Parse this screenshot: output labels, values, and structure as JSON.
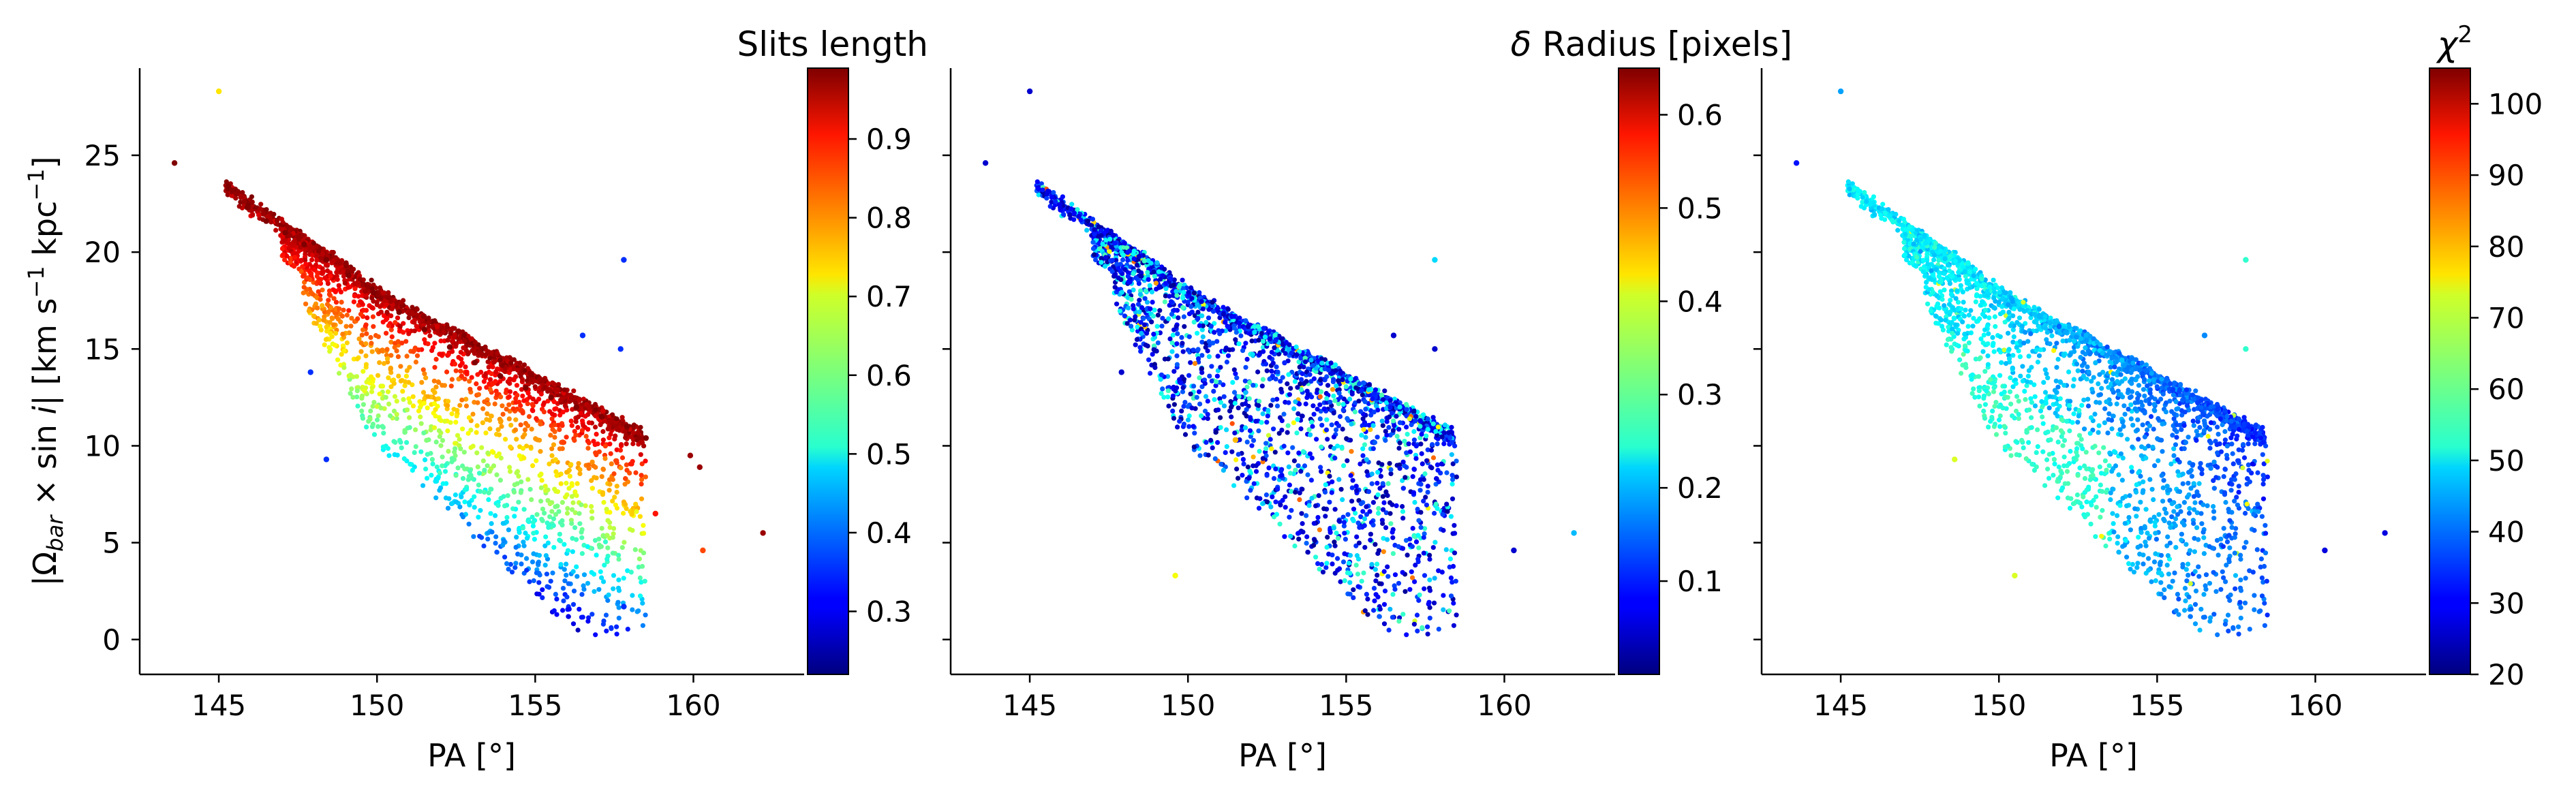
{
  "chart_data": [
    {
      "type": "scatter",
      "xlabel": "PA [°]",
      "ylabel": "|Ω_bar × sin i|   [km s⁻¹ kpc⁻¹]",
      "ylabel_parts": {
        "pre": "|Ω",
        "sub": "bar",
        "mid": " × sin ",
        "ital": "i",
        "post": "|   [km s",
        "sup1": "−1",
        "post2": " kpc",
        "sup2": "−1",
        "post3": "]"
      },
      "xlim": [
        142.5,
        163.5
      ],
      "ylim": [
        -1.8,
        29.5
      ],
      "xticks": [
        145,
        150,
        155,
        160
      ],
      "xtick_labels": [
        "145",
        "150",
        "155",
        "160"
      ],
      "yticks": [
        0,
        5,
        10,
        15,
        20,
        25
      ],
      "ytick_labels": [
        "0",
        "5",
        "10",
        "15",
        "20",
        "25"
      ],
      "colorbar": {
        "title": "Slits length",
        "colormap": "jet",
        "range": [
          0.22,
          0.99
        ],
        "ticks": [
          0.3,
          0.4,
          0.5,
          0.6,
          0.7,
          0.8,
          0.9
        ],
        "tick_labels": [
          "0.3",
          "0.4",
          "0.5",
          "0.6",
          "0.7",
          "0.8",
          "0.9"
        ]
      },
      "color_mapping": "slit length: largest on upper edge of the cloud (dark red), decreasing downward to ~0.45 (cyan) at the lowest points",
      "series": [
        {
          "points_x": [
            143.6,
            145.0,
            145.3,
            145.9,
            146.5,
            147.1,
            147.7,
            148.4,
            149.1,
            149.9,
            150.7,
            151.5,
            152.3,
            153.1,
            153.9,
            154.7,
            155.5,
            156.3,
            157.1,
            157.9,
            158.5,
            157.8,
            158.8,
            159.9,
            160.2,
            160.3,
            162.2,
            147.9,
            148.4,
            157.7,
            157.8,
            156.5
          ],
          "points_y": [
            24.6,
            28.3,
            23.4,
            22.3,
            21.6,
            21.0,
            20.4,
            19.6,
            18.8,
            17.9,
            16.9,
            16.0,
            15.1,
            14.3,
            13.6,
            13.0,
            12.5,
            12.0,
            11.5,
            11.0,
            10.4,
            19.6,
            6.5,
            9.5,
            8.9,
            4.6,
            5.5,
            13.8,
            9.3,
            15.0,
            1.7,
            15.7
          ],
          "colors": [
            0.99,
            0.72,
            0.99,
            0.99,
            0.99,
            0.99,
            0.99,
            0.99,
            0.99,
            0.99,
            0.99,
            0.99,
            0.99,
            0.99,
            0.99,
            0.99,
            0.99,
            0.99,
            0.99,
            0.99,
            0.99,
            0.35,
            0.88,
            0.97,
            0.97,
            0.84,
            0.97,
            0.35,
            0.35,
            0.35,
            0.35,
            0.35
          ]
        }
      ]
    },
    {
      "type": "scatter",
      "xlabel": "PA [°]",
      "xlim": [
        142.5,
        163.5
      ],
      "ylim": [
        -1.8,
        29.5
      ],
      "xticks": [
        145,
        150,
        155,
        160
      ],
      "xtick_labels": [
        "145",
        "150",
        "155",
        "160"
      ],
      "yticks": [
        0,
        5,
        10,
        15,
        20,
        25
      ],
      "colorbar": {
        "title": "δ Radius [pixels]",
        "title_parts": {
          "ital": "δ",
          "rest": " Radius [pixels]"
        },
        "colormap": "jet",
        "range": [
          0.0,
          0.65
        ],
        "ticks": [
          0.1,
          0.2,
          0.3,
          0.4,
          0.5,
          0.6
        ],
        "tick_labels": [
          "0.1",
          "0.2",
          "0.3",
          "0.4",
          "0.5",
          "0.6"
        ]
      },
      "color_mapping": "δ radius: mostly 0.02–0.15 (dark blue) with scattered 0.2–0.3 (cyan) points, rare yellow/orange outliers",
      "series": [
        {
          "points_x": [
            143.6,
            145.0,
            147.9,
            151.5,
            149.6,
            157.8,
            156.5,
            157.8,
            160.3,
            162.2
          ],
          "points_y": [
            24.6,
            28.3,
            13.8,
            10.3,
            3.3,
            19.6,
            15.7,
            15.0,
            4.6,
            5.5
          ],
          "colors": [
            0.05,
            0.05,
            0.05,
            0.45,
            0.4,
            0.22,
            0.05,
            0.05,
            0.05,
            0.2
          ]
        }
      ]
    },
    {
      "type": "scatter",
      "xlabel": "PA [°]",
      "xlim": [
        142.5,
        163.5
      ],
      "ylim": [
        -1.8,
        29.5
      ],
      "xticks": [
        145,
        150,
        155,
        160
      ],
      "xtick_labels": [
        "145",
        "150",
        "155",
        "160"
      ],
      "yticks": [
        0,
        5,
        10,
        15,
        20,
        25
      ],
      "colorbar": {
        "title": "χ²",
        "title_parts": {
          "base": "χ",
          "sup": "2"
        },
        "colormap": "jet",
        "range": [
          20,
          105
        ],
        "ticks": [
          20,
          30,
          40,
          50,
          60,
          70,
          80,
          90,
          100
        ],
        "tick_labels": [
          "20",
          "30",
          "40",
          "50",
          "60",
          "70",
          "80",
          "90",
          "100"
        ]
      },
      "color_mapping": "χ²: ~45–55 (light blue/cyan) near the upper-left and bottom, ~30 (dark blue) along the lower-right edge, a few 60–70 green/yellow outliers",
      "series": [
        {
          "points_x": [
            143.6,
            145.0,
            148.6,
            150.5,
            157.8,
            156.5,
            157.8,
            160.3,
            162.2
          ],
          "points_y": [
            24.6,
            28.3,
            9.3,
            3.3,
            19.6,
            15.7,
            15.0,
            4.6,
            5.5
          ],
          "colors": [
            32,
            44,
            70,
            70,
            56,
            42,
            56,
            28,
            28
          ]
        }
      ]
    }
  ]
}
